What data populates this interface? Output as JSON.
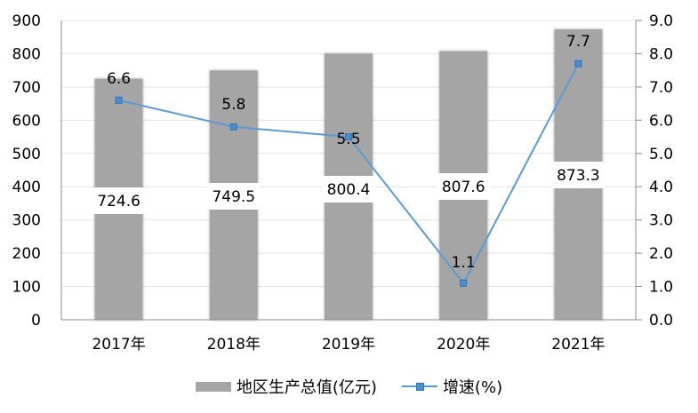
{
  "chart_data": {
    "type": "bar+line",
    "title": "",
    "categories": [
      "2017年",
      "2018年",
      "2019年",
      "2020年",
      "2021年"
    ],
    "series": [
      {
        "name": "地区生产总值(亿元)",
        "type": "bar",
        "axis": "left",
        "values": [
          724.6,
          749.5,
          800.4,
          807.6,
          873.3
        ],
        "color": "#a5a5a5"
      },
      {
        "name": "增速(%)",
        "type": "line",
        "axis": "right",
        "values": [
          6.6,
          5.8,
          5.5,
          1.1,
          7.7
        ],
        "color": "#5b9bd5"
      }
    ],
    "left_axis": {
      "min": 0,
      "max": 900,
      "step": 100,
      "ticks": [
        "0",
        "100",
        "200",
        "300",
        "400",
        "500",
        "600",
        "700",
        "800",
        "900"
      ]
    },
    "right_axis": {
      "min": 0,
      "max": 9,
      "step": 1,
      "ticks": [
        "0.0",
        "1.0",
        "2.0",
        "3.0",
        "4.0",
        "5.0",
        "6.0",
        "7.0",
        "8.0",
        "9.0"
      ]
    },
    "bar_labels": [
      "724.6",
      "749.5",
      "800.4",
      "807.6",
      "873.3"
    ],
    "line_labels": [
      "6.6",
      "5.8",
      "5.5",
      "1.1",
      "7.7"
    ],
    "grid": true,
    "legend_position": "bottom"
  },
  "legend": {
    "bar_label": "地区生产总值(亿元)",
    "line_label": "增速(%)"
  }
}
